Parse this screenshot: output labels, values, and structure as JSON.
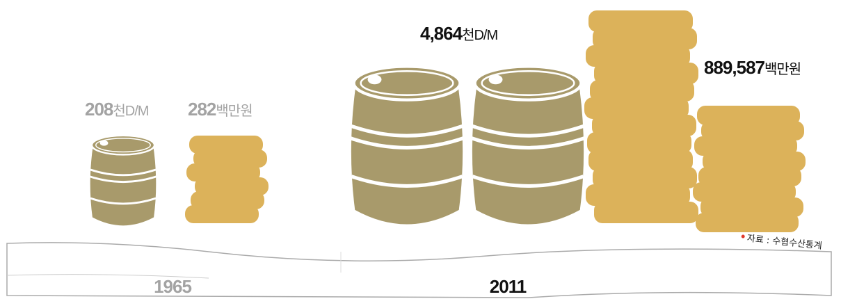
{
  "periods": [
    {
      "year": "1965",
      "production": {
        "value": "208",
        "unit": "천D/M"
      },
      "sales": {
        "value": "282",
        "unit": "백만원"
      }
    },
    {
      "year": "2011",
      "production": {
        "value": "4,864",
        "unit": "천D/M"
      },
      "sales": {
        "value": "889,587",
        "unit": "백만원"
      }
    }
  ],
  "source": "자료 : 수협수산통계"
}
